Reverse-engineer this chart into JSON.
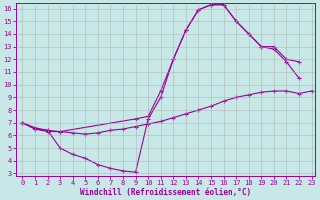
{
  "xlabel": "Windchill (Refroidissement éolien,°C)",
  "bg_color": "#c8e8e8",
  "line_color": "#990099",
  "grid_color": "#aaaaaa",
  "xlim": [
    -0.5,
    23.3
  ],
  "ylim": [
    2.8,
    16.4
  ],
  "xticks": [
    0,
    1,
    2,
    3,
    4,
    5,
    6,
    7,
    8,
    9,
    10,
    11,
    12,
    13,
    14,
    15,
    16,
    17,
    18,
    19,
    20,
    21,
    22,
    23
  ],
  "yticks": [
    3,
    4,
    5,
    6,
    7,
    8,
    9,
    10,
    11,
    12,
    13,
    14,
    15,
    16
  ],
  "s1_x": [
    0,
    1,
    2,
    3,
    4,
    5,
    6,
    7,
    8,
    9,
    10,
    11,
    12,
    13,
    14,
    15,
    16,
    17,
    18,
    19,
    20,
    21,
    22
  ],
  "s1_y": [
    7,
    6.6,
    6.4,
    5.0,
    4.5,
    4.2,
    3.7,
    3.4,
    3.2,
    3.1,
    7.3,
    9.0,
    12.0,
    14.3,
    15.9,
    16.3,
    16.3,
    15.0,
    14.0,
    13.0,
    12.8,
    11.8,
    10.5
  ],
  "s2_x": [
    0,
    1,
    2,
    3,
    4,
    5,
    6,
    7,
    8,
    9,
    10,
    11,
    12,
    13,
    14,
    15,
    16,
    17,
    18,
    19,
    20,
    21,
    22,
    23
  ],
  "s2_y": [
    7,
    6.5,
    6.3,
    6.3,
    6.2,
    6.1,
    6.2,
    6.4,
    6.5,
    6.7,
    6.9,
    7.1,
    7.4,
    7.7,
    8.0,
    8.3,
    8.7,
    9.0,
    9.2,
    9.4,
    9.5,
    9.5,
    9.3,
    9.5
  ],
  "s3_x": [
    0,
    1,
    2,
    3,
    9,
    10,
    11,
    12,
    13,
    14,
    15,
    16,
    17,
    18,
    19,
    20,
    21,
    22
  ],
  "s3_y": [
    7,
    6.5,
    6.4,
    6.3,
    7.3,
    7.5,
    9.5,
    12.0,
    14.3,
    15.9,
    16.3,
    16.3,
    15.0,
    14.0,
    13.0,
    13.0,
    12.0,
    11.8
  ]
}
